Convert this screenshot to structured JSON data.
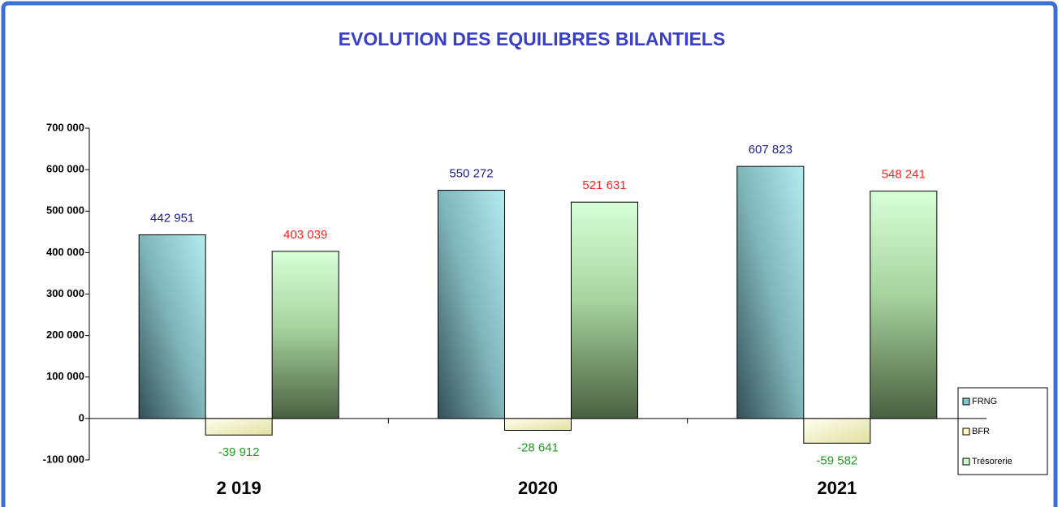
{
  "chart_data": {
    "type": "bar",
    "title": "EVOLUTION DES EQUILIBRES BILANTIELS",
    "categories": [
      "2 019",
      "2020",
      "2021"
    ],
    "series": [
      {
        "name": "FRNG",
        "color": "#7fc4c8",
        "label_color": "#1c1c8c",
        "values": [
          442951,
          550272,
          607823
        ],
        "value_labels": [
          "442 951",
          "550 272",
          "607 823"
        ]
      },
      {
        "name": "BFR",
        "color": "#ffffc0",
        "label_color": "#229922",
        "values": [
          -39912,
          -28641,
          -59582
        ],
        "value_labels": [
          "-39 912",
          "-28 641",
          "-59 582"
        ]
      },
      {
        "name": "Trésorerie",
        "color": "#ccffcc",
        "label_color": "#ff2020",
        "values": [
          403039,
          521631,
          548241
        ],
        "value_labels": [
          "403 039",
          "521 631",
          "548 241"
        ]
      }
    ],
    "ylim": [
      -100000,
      700000
    ],
    "yticks": [
      {
        "value": -100000,
        "label": "-100 000"
      },
      0,
      {
        "value": 100000,
        "label": "100 000"
      },
      {
        "value": 200000,
        "label": "200 000"
      },
      {
        "value": 300000,
        "label": "300 000"
      },
      {
        "value": 400000,
        "label": "400 000"
      },
      {
        "value": 500000,
        "label": "500 000"
      },
      {
        "value": 600000,
        "label": "600 000"
      },
      {
        "value": 700000,
        "label": "700 000"
      }
    ],
    "legend": "right"
  }
}
